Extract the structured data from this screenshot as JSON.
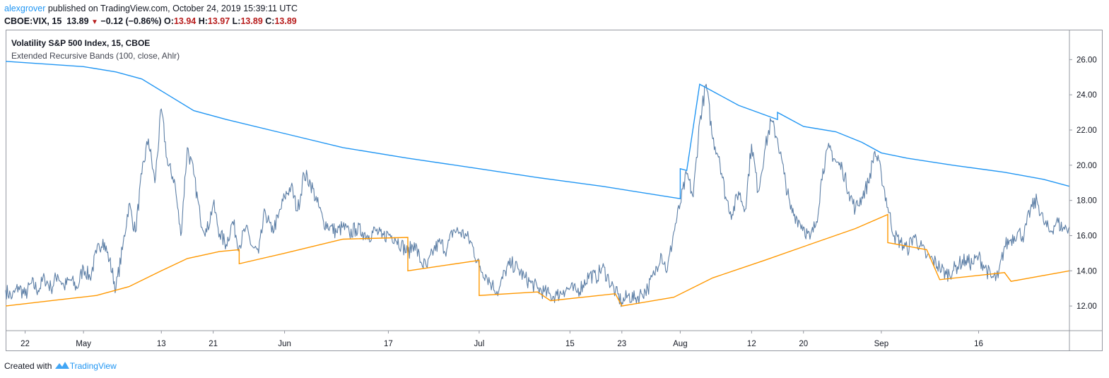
{
  "header": {
    "author": "alexgrover",
    "published_text": "published on TradingView.com, October 24, 2019 15:39:11 UTC",
    "symbol": "CBOE:VIX, 15",
    "last": "13.89",
    "change": "−0.12 (−0.86%)",
    "o_label": "O:",
    "o_value": "13.94",
    "h_label": "H:",
    "h_value": "13.97",
    "l_label": "L:",
    "l_value": "13.89",
    "c_label": "C:",
    "c_value": "13.89"
  },
  "legend": {
    "instrument": "Volatility S&P 500 Index, 15, CBOE",
    "indicator": "Extended Recursive Bands (100, close, Ahlr)"
  },
  "footer": {
    "created_with": "Created with",
    "brand": "TradingView"
  },
  "colors": {
    "price": "#5d7fa6",
    "upper_band": "#2196f3",
    "lower_band": "#ff9800",
    "down_arrow": "#b71c1c",
    "axis": "#9598a1"
  },
  "chart_data": {
    "type": "line",
    "title": "Volatility S&P 500 Index, 15, CBOE",
    "ylim": [
      10.6,
      27.7
    ],
    "y_ticks": [
      12,
      14,
      16,
      18,
      20,
      22,
      24,
      26
    ],
    "y_tick_labels": [
      "12.00",
      "14.00",
      "16.00",
      "18.00",
      "20.00",
      "22.00",
      "24.00",
      "26.00"
    ],
    "x_range": [
      "2019-04-19",
      "2019-09-30"
    ],
    "x_ticks": [
      {
        "date": "2019-04-22",
        "label": "22"
      },
      {
        "date": "2019-05-01",
        "label": "May"
      },
      {
        "date": "2019-05-13",
        "label": "13"
      },
      {
        "date": "2019-05-21",
        "label": "21"
      },
      {
        "date": "2019-06-01",
        "label": "Jun"
      },
      {
        "date": "2019-06-17",
        "label": "17"
      },
      {
        "date": "2019-07-01",
        "label": "Jul"
      },
      {
        "date": "2019-07-15",
        "label": "15"
      },
      {
        "date": "2019-07-23",
        "label": "23"
      },
      {
        "date": "2019-08-01",
        "label": "Aug"
      },
      {
        "date": "2019-08-12",
        "label": "12"
      },
      {
        "date": "2019-08-20",
        "label": "20"
      },
      {
        "date": "2019-09-01",
        "label": "Sep"
      },
      {
        "date": "2019-09-16",
        "label": "16"
      }
    ],
    "series": [
      {
        "role": "price",
        "points": [
          [
            "2019-04-19",
            12.9
          ],
          [
            "2019-04-20",
            12.5
          ],
          [
            "2019-04-21",
            13.1
          ],
          [
            "2019-04-22",
            12.6
          ],
          [
            "2019-04-23",
            13.3
          ],
          [
            "2019-04-24",
            12.9
          ],
          [
            "2019-04-25",
            13.6
          ],
          [
            "2019-04-26",
            13.0
          ],
          [
            "2019-04-27",
            13.8
          ],
          [
            "2019-04-28",
            13.1
          ],
          [
            "2019-04-29",
            13.5
          ],
          [
            "2019-04-30",
            13.0
          ],
          [
            "2019-05-01",
            14.2
          ],
          [
            "2019-05-02",
            13.6
          ],
          [
            "2019-05-03",
            15.0
          ],
          [
            "2019-05-04",
            15.8
          ],
          [
            "2019-05-05",
            14.6
          ],
          [
            "2019-05-06",
            13.0
          ],
          [
            "2019-05-07",
            15.2
          ],
          [
            "2019-05-08",
            17.8
          ],
          [
            "2019-05-09",
            16.2
          ],
          [
            "2019-05-10",
            19.5
          ],
          [
            "2019-05-11",
            21.5
          ],
          [
            "2019-05-12",
            19.0
          ],
          [
            "2019-05-13",
            23.2
          ],
          [
            "2019-05-14",
            20.0
          ],
          [
            "2019-05-15",
            19.2
          ],
          [
            "2019-05-16",
            16.0
          ],
          [
            "2019-05-17",
            21.0
          ],
          [
            "2019-05-18",
            19.5
          ],
          [
            "2019-05-19",
            17.0
          ],
          [
            "2019-05-20",
            16.2
          ],
          [
            "2019-05-21",
            17.8
          ],
          [
            "2019-05-22",
            16.1
          ],
          [
            "2019-05-23",
            15.5
          ],
          [
            "2019-05-24",
            16.8
          ],
          [
            "2019-05-25",
            15.4
          ],
          [
            "2019-05-26",
            16.4
          ],
          [
            "2019-05-27",
            15.4
          ],
          [
            "2019-05-28",
            15.0
          ],
          [
            "2019-05-29",
            17.4
          ],
          [
            "2019-05-30",
            16.2
          ],
          [
            "2019-05-31",
            17.0
          ],
          [
            "2019-06-01",
            18.2
          ],
          [
            "2019-06-02",
            18.8
          ],
          [
            "2019-06-03",
            17.4
          ],
          [
            "2019-06-04",
            19.5
          ],
          [
            "2019-06-05",
            19.0
          ],
          [
            "2019-06-06",
            17.9
          ],
          [
            "2019-06-07",
            16.8
          ],
          [
            "2019-06-08",
            16.5
          ],
          [
            "2019-06-09",
            16.2
          ],
          [
            "2019-06-10",
            16.5
          ],
          [
            "2019-06-11",
            16.1
          ],
          [
            "2019-06-12",
            16.4
          ],
          [
            "2019-06-13",
            16.2
          ],
          [
            "2019-06-14",
            16.0
          ],
          [
            "2019-06-15",
            16.3
          ],
          [
            "2019-06-16",
            15.9
          ],
          [
            "2019-06-17",
            16.1
          ],
          [
            "2019-06-18",
            15.9
          ],
          [
            "2019-06-19",
            15.5
          ],
          [
            "2019-06-20",
            15.0
          ],
          [
            "2019-06-21",
            15.6
          ],
          [
            "2019-06-22",
            14.5
          ],
          [
            "2019-06-23",
            14.2
          ],
          [
            "2019-06-24",
            15.2
          ],
          [
            "2019-06-25",
            15.6
          ],
          [
            "2019-06-26",
            15.2
          ],
          [
            "2019-06-27",
            16.3
          ],
          [
            "2019-06-28",
            16.2
          ],
          [
            "2019-06-29",
            16.0
          ],
          [
            "2019-06-30",
            15.4
          ],
          [
            "2019-07-01",
            14.2
          ],
          [
            "2019-07-02",
            13.8
          ],
          [
            "2019-07-03",
            13.2
          ],
          [
            "2019-07-04",
            12.8
          ],
          [
            "2019-07-05",
            14.0
          ],
          [
            "2019-07-06",
            14.4
          ],
          [
            "2019-07-07",
            14.1
          ],
          [
            "2019-07-08",
            13.6
          ],
          [
            "2019-07-09",
            13.3
          ],
          [
            "2019-07-10",
            13.0
          ],
          [
            "2019-07-11",
            12.8
          ],
          [
            "2019-07-12",
            12.6
          ],
          [
            "2019-07-13",
            12.6
          ],
          [
            "2019-07-14",
            12.9
          ],
          [
            "2019-07-15",
            13.0
          ],
          [
            "2019-07-16",
            12.8
          ],
          [
            "2019-07-17",
            13.2
          ],
          [
            "2019-07-18",
            13.8
          ],
          [
            "2019-07-19",
            13.6
          ],
          [
            "2019-07-20",
            14.2
          ],
          [
            "2019-07-21",
            13.5
          ],
          [
            "2019-07-22",
            12.8
          ],
          [
            "2019-07-23",
            12.2
          ],
          [
            "2019-07-24",
            12.6
          ],
          [
            "2019-07-25",
            12.4
          ],
          [
            "2019-07-26",
            12.7
          ],
          [
            "2019-07-27",
            13.0
          ],
          [
            "2019-07-28",
            13.8
          ],
          [
            "2019-07-29",
            15.0
          ],
          [
            "2019-07-30",
            14.0
          ],
          [
            "2019-07-31",
            16.2
          ],
          [
            "2019-08-01",
            17.8
          ],
          [
            "2019-08-02",
            19.5
          ],
          [
            "2019-08-03",
            18.2
          ],
          [
            "2019-08-04",
            22.5
          ],
          [
            "2019-08-05",
            24.6
          ],
          [
            "2019-08-06",
            21.5
          ],
          [
            "2019-08-07",
            20.5
          ],
          [
            "2019-08-08",
            18.2
          ],
          [
            "2019-08-09",
            17.2
          ],
          [
            "2019-08-10",
            18.5
          ],
          [
            "2019-08-11",
            17.5
          ],
          [
            "2019-08-12",
            21.2
          ],
          [
            "2019-08-13",
            18.5
          ],
          [
            "2019-08-14",
            20.8
          ],
          [
            "2019-08-15",
            22.5
          ],
          [
            "2019-08-16",
            21.5
          ],
          [
            "2019-08-17",
            19.5
          ],
          [
            "2019-08-18",
            17.5
          ],
          [
            "2019-08-19",
            17.0
          ],
          [
            "2019-08-20",
            16.5
          ],
          [
            "2019-08-21",
            15.8
          ],
          [
            "2019-08-22",
            16.8
          ],
          [
            "2019-08-23",
            19.8
          ],
          [
            "2019-08-24",
            21.0
          ],
          [
            "2019-08-25",
            20.2
          ],
          [
            "2019-08-26",
            19.8
          ],
          [
            "2019-08-27",
            18.5
          ],
          [
            "2019-08-28",
            17.5
          ],
          [
            "2019-08-29",
            18.2
          ],
          [
            "2019-08-30",
            19.0
          ],
          [
            "2019-08-31",
            20.8
          ],
          [
            "2019-09-01",
            19.5
          ],
          [
            "2019-09-02",
            17.6
          ],
          [
            "2019-09-03",
            16.0
          ],
          [
            "2019-09-04",
            15.6
          ],
          [
            "2019-09-05",
            15.2
          ],
          [
            "2019-09-06",
            16.0
          ],
          [
            "2019-09-07",
            15.4
          ],
          [
            "2019-09-08",
            14.8
          ],
          [
            "2019-09-09",
            14.6
          ],
          [
            "2019-09-10",
            14.2
          ],
          [
            "2019-09-11",
            13.8
          ],
          [
            "2019-09-12",
            14.0
          ],
          [
            "2019-09-13",
            14.4
          ],
          [
            "2019-09-14",
            14.6
          ],
          [
            "2019-09-15",
            14.4
          ],
          [
            "2019-09-16",
            14.8
          ],
          [
            "2019-09-17",
            14.2
          ],
          [
            "2019-09-18",
            13.6
          ],
          [
            "2019-09-19",
            13.6
          ],
          [
            "2019-09-20",
            15.4
          ],
          [
            "2019-09-21",
            15.8
          ],
          [
            "2019-09-22",
            16.2
          ],
          [
            "2019-09-23",
            16.0
          ],
          [
            "2019-09-24",
            17.5
          ],
          [
            "2019-09-25",
            18.0
          ],
          [
            "2019-09-26",
            16.8
          ],
          [
            "2019-09-27",
            16.2
          ],
          [
            "2019-09-28",
            16.8
          ],
          [
            "2019-09-29",
            16.4
          ],
          [
            "2019-09-30",
            16.5
          ]
        ]
      },
      {
        "role": "upper band",
        "points": [
          [
            "2019-04-19",
            25.9
          ],
          [
            "2019-05-01",
            25.6
          ],
          [
            "2019-05-06",
            25.3
          ],
          [
            "2019-05-10",
            24.9
          ],
          [
            "2019-05-14",
            24.0
          ],
          [
            "2019-05-18",
            23.1
          ],
          [
            "2019-05-23",
            22.6
          ],
          [
            "2019-06-01",
            21.8
          ],
          [
            "2019-06-10",
            21.0
          ],
          [
            "2019-06-20",
            20.4
          ],
          [
            "2019-07-01",
            19.8
          ],
          [
            "2019-07-10",
            19.3
          ],
          [
            "2019-07-20",
            18.8
          ],
          [
            "2019-08-01",
            18.1
          ],
          [
            "2019-08-01",
            19.8
          ],
          [
            "2019-08-02",
            19.7
          ],
          [
            "2019-08-04",
            24.6
          ],
          [
            "2019-08-10",
            23.4
          ],
          [
            "2019-08-16",
            22.6
          ],
          [
            "2019-08-16",
            23.0
          ],
          [
            "2019-08-20",
            22.2
          ],
          [
            "2019-08-25",
            21.9
          ],
          [
            "2019-08-29",
            21.3
          ],
          [
            "2019-09-01",
            20.7
          ],
          [
            "2019-09-05",
            20.4
          ],
          [
            "2019-09-12",
            20.0
          ],
          [
            "2019-09-20",
            19.6
          ],
          [
            "2019-09-26",
            19.2
          ],
          [
            "2019-09-30",
            18.8
          ]
        ]
      },
      {
        "role": "lower band",
        "points": [
          [
            "2019-04-19",
            12.0
          ],
          [
            "2019-04-26",
            12.3
          ],
          [
            "2019-05-03",
            12.6
          ],
          [
            "2019-05-08",
            13.1
          ],
          [
            "2019-05-13",
            14.0
          ],
          [
            "2019-05-17",
            14.7
          ],
          [
            "2019-05-22",
            15.1
          ],
          [
            "2019-05-25",
            15.2
          ],
          [
            "2019-05-25",
            14.4
          ],
          [
            "2019-06-01",
            15.0
          ],
          [
            "2019-06-10",
            15.8
          ],
          [
            "2019-06-20",
            15.9
          ],
          [
            "2019-06-20",
            14.0
          ],
          [
            "2019-07-01",
            14.6
          ],
          [
            "2019-07-01",
            12.6
          ],
          [
            "2019-07-10",
            12.8
          ],
          [
            "2019-07-12",
            12.3
          ],
          [
            "2019-07-22",
            12.7
          ],
          [
            "2019-07-23",
            12.0
          ],
          [
            "2019-07-31",
            12.5
          ],
          [
            "2019-08-06",
            13.6
          ],
          [
            "2019-08-14",
            14.6
          ],
          [
            "2019-08-21",
            15.5
          ],
          [
            "2019-08-28",
            16.4
          ],
          [
            "2019-09-02",
            17.2
          ],
          [
            "2019-09-02",
            15.6
          ],
          [
            "2019-09-08",
            15.2
          ],
          [
            "2019-09-10",
            13.5
          ],
          [
            "2019-09-20",
            13.9
          ],
          [
            "2019-09-21",
            13.4
          ],
          [
            "2019-09-30",
            14.0
          ]
        ]
      }
    ]
  }
}
